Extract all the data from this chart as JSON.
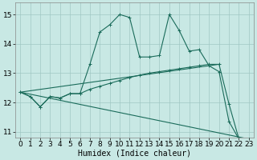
{
  "xlabel": "Humidex (Indice chaleur)",
  "xlim": [
    -0.5,
    23.5
  ],
  "ylim": [
    10.8,
    15.4
  ],
  "yticks": [
    11,
    12,
    13,
    14,
    15
  ],
  "xticks": [
    0,
    1,
    2,
    3,
    4,
    5,
    6,
    7,
    8,
    9,
    10,
    11,
    12,
    13,
    14,
    15,
    16,
    17,
    18,
    19,
    20,
    21,
    22,
    23
  ],
  "bg_color": "#c8e8e4",
  "grid_color": "#a0c8c4",
  "line_color": "#1a6b5a",
  "series1": {
    "x": [
      0,
      1,
      2,
      3,
      4,
      5,
      6,
      7,
      8,
      9,
      10,
      11,
      12,
      13,
      14,
      15,
      16,
      17,
      18,
      19,
      20,
      21,
      22,
      23
    ],
    "y": [
      12.35,
      12.2,
      11.85,
      12.2,
      12.15,
      12.3,
      12.3,
      13.3,
      14.4,
      14.65,
      15.0,
      14.9,
      13.55,
      13.55,
      13.6,
      15.0,
      14.45,
      13.75,
      13.8,
      13.25,
      13.05,
      11.35,
      10.75,
      10.75
    ]
  },
  "series2": {
    "x": [
      0,
      1,
      2,
      3,
      4,
      5,
      6,
      7,
      8,
      9,
      10,
      11,
      12,
      13,
      14,
      15,
      16,
      17,
      18,
      19,
      20,
      21,
      22,
      23
    ],
    "y": [
      12.35,
      12.2,
      11.85,
      12.2,
      12.15,
      12.3,
      12.3,
      12.45,
      12.55,
      12.65,
      12.75,
      12.85,
      12.93,
      13.0,
      13.05,
      13.1,
      13.15,
      13.2,
      13.25,
      13.3,
      13.3,
      11.95,
      10.75,
      10.75
    ]
  },
  "line_up": {
    "x": [
      0,
      20
    ],
    "y": [
      12.35,
      13.3
    ]
  },
  "line_down": {
    "x": [
      0,
      23
    ],
    "y": [
      12.35,
      10.75
    ]
  },
  "font_size": 6.5
}
